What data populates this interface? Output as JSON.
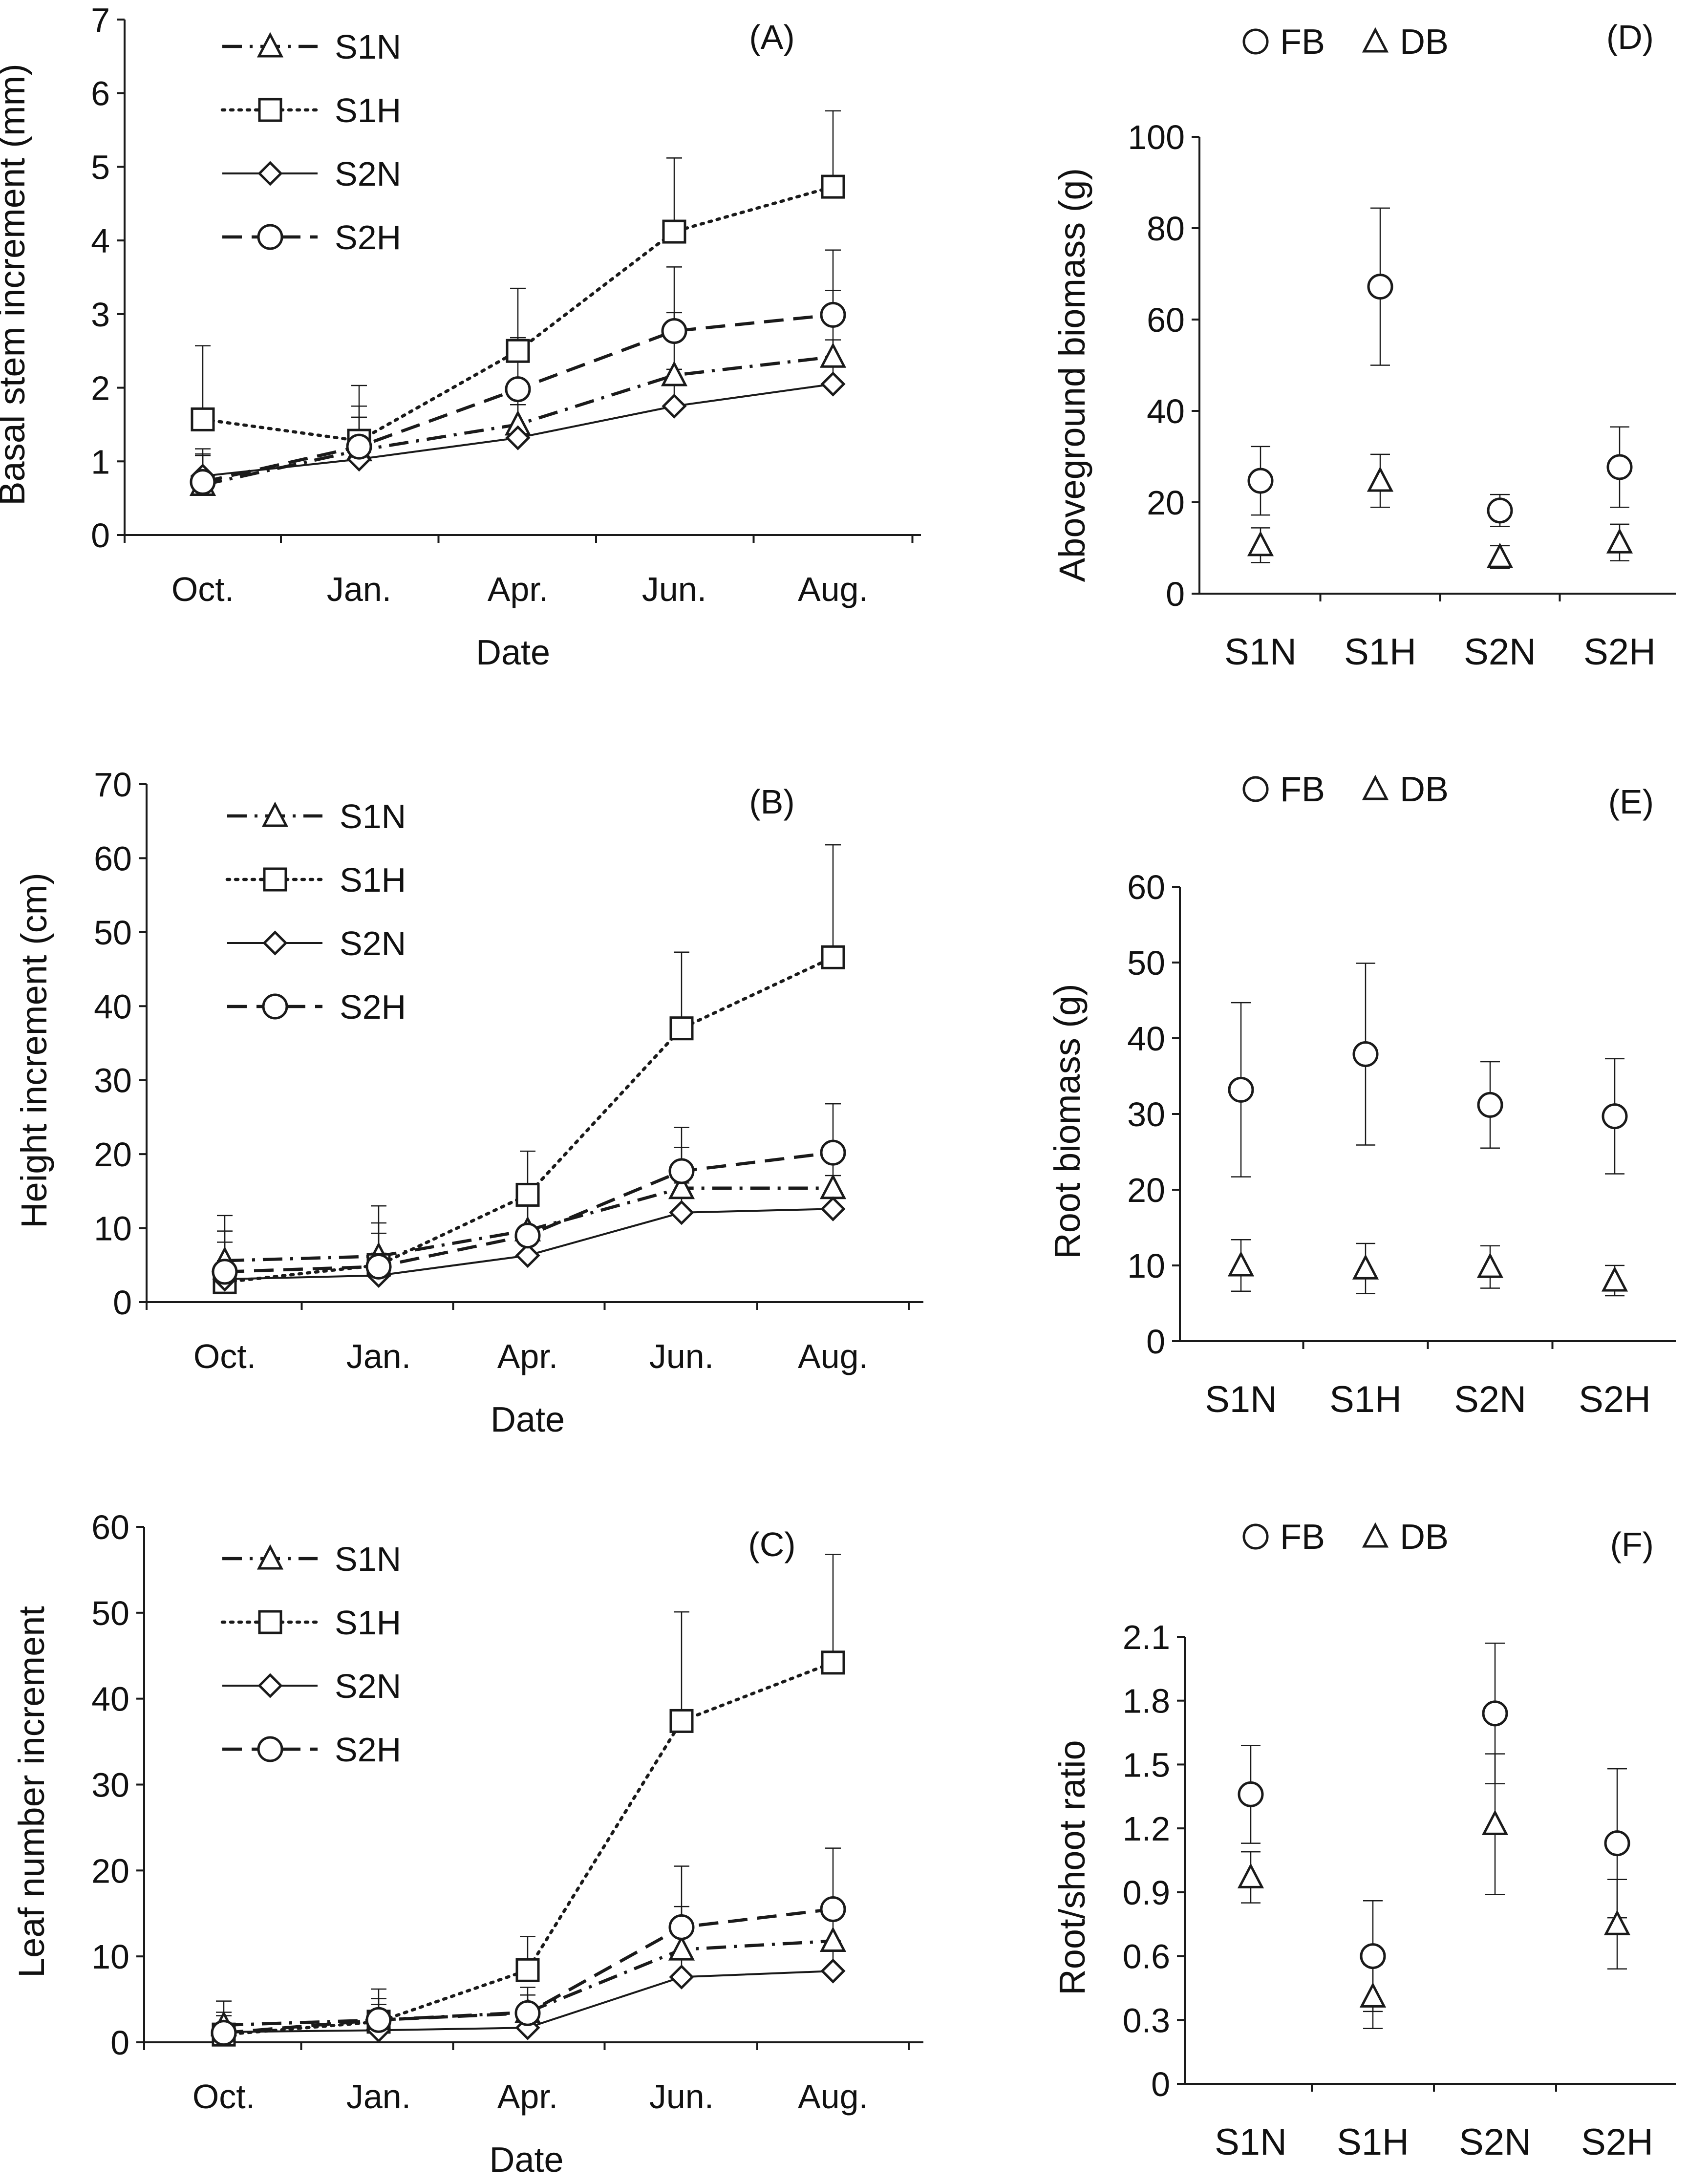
{
  "chart_data": [
    {
      "type": "line",
      "panel": "(A)",
      "xlabel": "Date",
      "ylabel": "Basal stem increment (mm)",
      "categories": [
        "Oct.",
        "Jan.",
        "Apr.",
        "Jun.",
        "Aug."
      ],
      "ylim": [
        0,
        7
      ],
      "yticks": [
        "0",
        "1",
        "2",
        "3",
        "4",
        "5",
        "6",
        "7"
      ],
      "legend_position": "top-left",
      "series": [
        {
          "name": "S1N",
          "marker": "triangle",
          "line": "dash-dot",
          "values": [
            0.68,
            1.15,
            1.5,
            2.17,
            2.42
          ],
          "err": [
            0.4,
            0.45,
            0.5,
            0.85,
            0.9
          ]
        },
        {
          "name": "S1H",
          "marker": "square",
          "line": "dotted",
          "values": [
            1.57,
            1.28,
            2.5,
            4.12,
            4.73
          ],
          "err": [
            1.0,
            0.75,
            0.85,
            1.0,
            1.03
          ]
        },
        {
          "name": "S2N",
          "marker": "diamond",
          "line": "solid",
          "values": [
            0.8,
            1.03,
            1.32,
            1.75,
            2.05
          ],
          "err": [
            0.3,
            0.4,
            0.45,
            0.5,
            0.6
          ]
        },
        {
          "name": "S2H",
          "marker": "circle",
          "line": "dashed",
          "values": [
            0.72,
            1.2,
            1.98,
            2.77,
            2.99
          ],
          "err": [
            0.45,
            0.55,
            0.7,
            0.87,
            0.88
          ]
        }
      ]
    },
    {
      "type": "line",
      "panel": "(B)",
      "xlabel": "Date",
      "ylabel": "Height increment (cm)",
      "categories": [
        "Oct.",
        "Jan.",
        "Apr.",
        "Jun.",
        "Aug."
      ],
      "ylim": [
        0,
        70
      ],
      "yticks": [
        "0",
        "10",
        "20",
        "30",
        "40",
        "50",
        "60",
        "70"
      ],
      "legend_position": "top-left",
      "series": [
        {
          "name": "S1N",
          "marker": "triangle",
          "line": "dash-dot",
          "values": [
            5.6,
            6.2,
            9.7,
            15.4,
            15.4
          ],
          "err": [
            4.0,
            4.5,
            5.0,
            5.5,
            6.0
          ]
        },
        {
          "name": "S1H",
          "marker": "square",
          "line": "dotted",
          "values": [
            2.7,
            5.0,
            14.5,
            37.0,
            46.6
          ],
          "err": [
            9.0,
            8.0,
            5.9,
            10.3,
            15.2
          ]
        },
        {
          "name": "S2N",
          "marker": "diamond",
          "line": "solid",
          "values": [
            3.1,
            3.6,
            6.3,
            12.1,
            12.6
          ],
          "err": [
            2.5,
            3.0,
            3.5,
            4.0,
            4.5
          ]
        },
        {
          "name": "S2H",
          "marker": "circle",
          "line": "dashed",
          "values": [
            4.1,
            4.8,
            9.0,
            17.7,
            20.2
          ],
          "err": [
            4.0,
            4.5,
            5.0,
            5.9,
            6.6
          ]
        }
      ]
    },
    {
      "type": "line",
      "panel": "(C)",
      "xlabel": "Date",
      "ylabel": "Leaf number increment",
      "categories": [
        "Oct.",
        "Jan.",
        "Apr.",
        "Jun.",
        "Aug."
      ],
      "ylim": [
        0,
        60
      ],
      "yticks": [
        "0",
        "10",
        "20",
        "30",
        "40",
        "50",
        "60"
      ],
      "legend_position": "top-left",
      "series": [
        {
          "name": "S1N",
          "marker": "triangle",
          "line": "dash-dot",
          "values": [
            2.0,
            2.6,
            3.5,
            10.8,
            11.8
          ],
          "err": [
            1.5,
            1.8,
            2.0,
            5.0,
            4.0
          ]
        },
        {
          "name": "S1H",
          "marker": "square",
          "line": "dotted",
          "values": [
            0.9,
            2.4,
            8.4,
            37.4,
            44.2
          ],
          "err": [
            3.9,
            3.8,
            3.9,
            12.7,
            12.6
          ]
        },
        {
          "name": "S2N",
          "marker": "diamond",
          "line": "solid",
          "values": [
            1.2,
            1.4,
            1.7,
            7.6,
            8.3
          ],
          "err": [
            1.0,
            1.2,
            1.5,
            3.0,
            3.5
          ]
        },
        {
          "name": "S2H",
          "marker": "circle",
          "line": "dashed",
          "values": [
            1.1,
            2.6,
            3.4,
            13.4,
            15.5
          ],
          "err": [
            2.0,
            2.5,
            3.0,
            7.1,
            7.1
          ]
        }
      ]
    },
    {
      "type": "scatter",
      "panel": "(D)",
      "xlabel": "",
      "ylabel": "Aboveground biomass (g)",
      "categories": [
        "S1N",
        "S1H",
        "S2N",
        "S2H"
      ],
      "ylim": [
        0,
        100
      ],
      "yticks": [
        "0",
        "20",
        "40",
        "60",
        "80",
        "100"
      ],
      "legend": [
        "FB",
        "DB"
      ],
      "legend_position": "top",
      "series": [
        {
          "name": "FB",
          "marker": "circle",
          "values": [
            24.7,
            67.2,
            18.2,
            27.7
          ],
          "err": [
            7.5,
            17.2,
            3.5,
            8.8
          ]
        },
        {
          "name": "DB",
          "marker": "triangle",
          "values": [
            10.6,
            24.7,
            8.0,
            11.2
          ],
          "err": [
            3.8,
            5.8,
            2.5,
            4.0
          ]
        }
      ]
    },
    {
      "type": "scatter",
      "panel": "(E)",
      "xlabel": "",
      "ylabel": "Root biomass (g)",
      "categories": [
        "S1N",
        "S1H",
        "S2N",
        "S2H"
      ],
      "ylim": [
        0,
        60
      ],
      "yticks": [
        "0",
        "10",
        "20",
        "30",
        "40",
        "50",
        "60"
      ],
      "legend": [
        "FB",
        "DB"
      ],
      "legend_position": "top",
      "series": [
        {
          "name": "FB",
          "marker": "circle",
          "values": [
            33.2,
            37.9,
            31.2,
            29.7
          ],
          "err": [
            11.5,
            12.0,
            5.7,
            7.6
          ]
        },
        {
          "name": "DB",
          "marker": "triangle",
          "values": [
            10.0,
            9.6,
            9.8,
            8.0
          ],
          "err": [
            3.4,
            3.3,
            2.8,
            2.0
          ]
        }
      ]
    },
    {
      "type": "scatter",
      "panel": "(F)",
      "xlabel": "",
      "ylabel": "Root/shoot ratio",
      "categories": [
        "S1N",
        "S1H",
        "S2N",
        "S2H"
      ],
      "ylim": [
        0,
        2.1
      ],
      "yticks": [
        "0",
        "0.3",
        "0.6",
        "0.9",
        "1.2",
        "1.5",
        "1.8",
        "2.1"
      ],
      "legend": [
        "FB",
        "DB"
      ],
      "legend_position": "top",
      "series": [
        {
          "name": "FB",
          "marker": "circle",
          "values": [
            1.36,
            0.6,
            1.74,
            1.13
          ],
          "err": [
            0.23,
            0.26,
            0.33,
            0.35
          ]
        },
        {
          "name": "DB",
          "marker": "triangle",
          "values": [
            0.97,
            0.41,
            1.22,
            0.75
          ],
          "err": [
            0.12,
            0.15,
            0.33,
            0.21
          ]
        }
      ]
    }
  ]
}
